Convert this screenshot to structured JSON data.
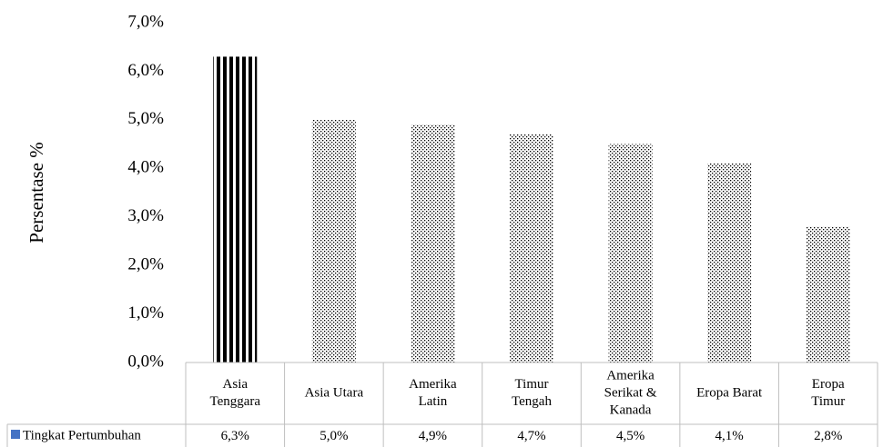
{
  "chart_data": {
    "type": "bar",
    "title": "",
    "xlabel": "",
    "ylabel": "Persentase %",
    "ylim": [
      0,
      7
    ],
    "y_ticks": [
      "0,0%",
      "1,0%",
      "2,0%",
      "3,0%",
      "4,0%",
      "5,0%",
      "6,0%",
      "7,0%"
    ],
    "categories": [
      [
        "Asia",
        "Tenggara"
      ],
      [
        "Asia Utara"
      ],
      [
        "Amerika",
        "Latin"
      ],
      [
        "Timur",
        "Tengah"
      ],
      [
        "Amerika",
        "Serikat &",
        "Kanada"
      ],
      [
        "Eropa Barat"
      ],
      [
        "Eropa",
        "Timur"
      ]
    ],
    "series": [
      {
        "name": "Tingkat Pertumbuhan",
        "values": [
          6.3,
          5.0,
          4.9,
          4.7,
          4.5,
          4.1,
          2.8
        ],
        "value_labels": [
          "6,3%",
          "5,0%",
          "4,9%",
          "4,7%",
          "4,5%",
          "4,1%",
          "2,8%"
        ]
      }
    ],
    "legend_position": "data-table",
    "grid": false,
    "legend_marker_color": "#4472c4",
    "bar_styles": [
      "vertical-stripes",
      "dots",
      "dots",
      "dots",
      "dots",
      "dots",
      "dots"
    ]
  }
}
